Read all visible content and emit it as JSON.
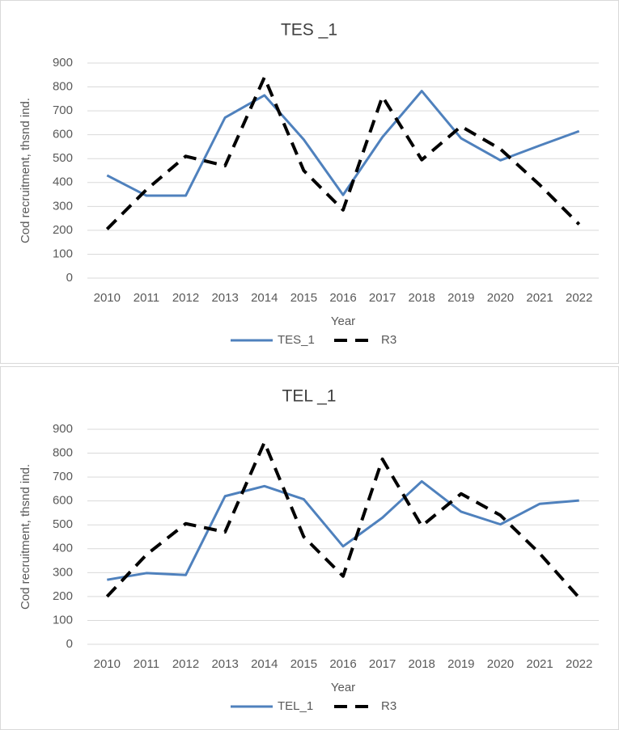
{
  "chart_data": [
    {
      "type": "line",
      "title": "TES _1",
      "x_label": "Year",
      "y_label": "Cod recruitment, thsnd ind.",
      "categories": [
        "2010",
        "2011",
        "2012",
        "2013",
        "2014",
        "2015",
        "2016",
        "2017",
        "2018",
        "2019",
        "2020",
        "2021",
        "2022"
      ],
      "series": [
        {
          "name": "TES_1",
          "color": "#4f81bd",
          "dashed": false,
          "values": [
            430,
            345,
            345,
            672,
            765,
            580,
            348,
            590,
            783,
            585,
            493,
            555,
            615
          ]
        },
        {
          "name": "R3",
          "color": "#000000",
          "dashed": true,
          "values": [
            205,
            370,
            510,
            470,
            840,
            450,
            285,
            760,
            495,
            635,
            540,
            390,
            225
          ]
        }
      ],
      "ylim": [
        0,
        900
      ],
      "yticks": [
        0,
        100,
        200,
        300,
        400,
        500,
        600,
        700,
        800,
        900
      ],
      "grid": true,
      "legend": "bottom"
    },
    {
      "type": "line",
      "title": "TEL _1",
      "x_label": "Year",
      "y_label": "Cod recruitment, thsnd ind.",
      "categories": [
        "2010",
        "2011",
        "2012",
        "2013",
        "2014",
        "2015",
        "2016",
        "2017",
        "2018",
        "2019",
        "2020",
        "2021",
        "2022"
      ],
      "series": [
        {
          "name": "TEL_1",
          "color": "#4f81bd",
          "dashed": false,
          "values": [
            270,
            298,
            290,
            620,
            662,
            607,
            410,
            530,
            682,
            555,
            502,
            588,
            602
          ]
        },
        {
          "name": "R3",
          "color": "#000000",
          "dashed": true,
          "values": [
            200,
            375,
            505,
            470,
            845,
            450,
            285,
            775,
            495,
            630,
            540,
            380,
            195
          ]
        }
      ],
      "ylim": [
        0,
        900
      ],
      "yticks": [
        0,
        100,
        200,
        300,
        400,
        500,
        600,
        700,
        800,
        900
      ],
      "grid": true,
      "legend": "bottom"
    }
  ]
}
